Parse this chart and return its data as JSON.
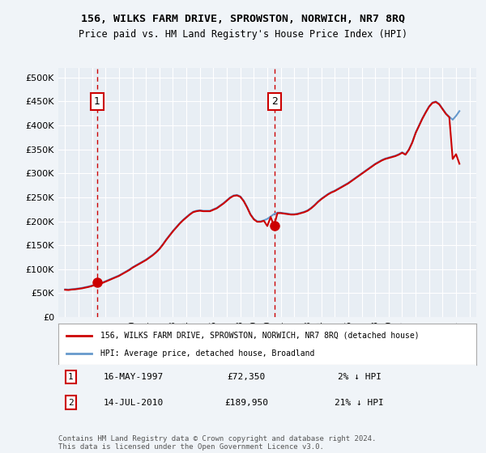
{
  "title": "156, WILKS FARM DRIVE, SPROWSTON, NORWICH, NR7 8RQ",
  "subtitle": "Price paid vs. HM Land Registry's House Price Index (HPI)",
  "legend_line1": "156, WILKS FARM DRIVE, SPROWSTON, NORWICH, NR7 8RQ (detached house)",
  "legend_line2": "HPI: Average price, detached house, Broadland",
  "annotation1_label": "1",
  "annotation1_date": "16-MAY-1997",
  "annotation1_price": "£72,350",
  "annotation1_hpi": "2% ↓ HPI",
  "annotation2_label": "2",
  "annotation2_date": "14-JUL-2010",
  "annotation2_price": "£189,950",
  "annotation2_hpi": "21% ↓ HPI",
  "footnote": "Contains HM Land Registry data © Crown copyright and database right 2024.\nThis data is licensed under the Open Government Licence v3.0.",
  "sale1_year": 1997.375,
  "sale1_price": 72350,
  "sale2_year": 2010.54,
  "sale2_price": 189950,
  "xlim": [
    1994.5,
    2025.5
  ],
  "ylim": [
    0,
    520000
  ],
  "yticks": [
    0,
    50000,
    100000,
    150000,
    200000,
    250000,
    300000,
    350000,
    400000,
    450000,
    500000
  ],
  "ytick_labels": [
    "£0",
    "£50K",
    "£100K",
    "£150K",
    "£200K",
    "£250K",
    "£300K",
    "£350K",
    "£400K",
    "£450K",
    "£500K"
  ],
  "background_color": "#f0f4f8",
  "plot_bg_color": "#e8eef4",
  "grid_color": "#ffffff",
  "red_line_color": "#cc0000",
  "blue_line_color": "#6699cc",
  "sale_dot_color": "#cc0000",
  "vline_color": "#cc0000",
  "hpi_line": {
    "years": [
      1995,
      1995.25,
      1995.5,
      1995.75,
      1996,
      1996.25,
      1996.5,
      1996.75,
      1997,
      1997.25,
      1997.5,
      1997.75,
      1998,
      1998.25,
      1998.5,
      1998.75,
      1999,
      1999.25,
      1999.5,
      1999.75,
      2000,
      2000.25,
      2000.5,
      2000.75,
      2001,
      2001.25,
      2001.5,
      2001.75,
      2002,
      2002.25,
      2002.5,
      2002.75,
      2003,
      2003.25,
      2003.5,
      2003.75,
      2004,
      2004.25,
      2004.5,
      2004.75,
      2005,
      2005.25,
      2005.5,
      2005.75,
      2006,
      2006.25,
      2006.5,
      2006.75,
      2007,
      2007.25,
      2007.5,
      2007.75,
      2008,
      2008.25,
      2008.5,
      2008.75,
      2009,
      2009.25,
      2009.5,
      2009.75,
      2010,
      2010.25,
      2010.5,
      2010.75,
      2011,
      2011.25,
      2011.5,
      2011.75,
      2012,
      2012.25,
      2012.5,
      2012.75,
      2013,
      2013.25,
      2013.5,
      2013.75,
      2014,
      2014.25,
      2014.5,
      2014.75,
      2015,
      2015.25,
      2015.5,
      2015.75,
      2016,
      2016.25,
      2016.5,
      2016.75,
      2017,
      2017.25,
      2017.5,
      2017.75,
      2018,
      2018.25,
      2018.5,
      2018.75,
      2019,
      2019.25,
      2019.5,
      2019.75,
      2020,
      2020.25,
      2020.5,
      2020.75,
      2021,
      2021.25,
      2021.5,
      2021.75,
      2022,
      2022.25,
      2022.5,
      2022.75,
      2023,
      2023.25,
      2023.5,
      2023.75,
      2024,
      2024.25
    ],
    "values": [
      58000,
      57500,
      58500,
      59000,
      60000,
      61000,
      62500,
      64000,
      66000,
      68000,
      70000,
      72000,
      75000,
      78000,
      81000,
      84000,
      87000,
      91000,
      95000,
      99000,
      104000,
      108000,
      112000,
      116000,
      120000,
      125000,
      130000,
      136000,
      143000,
      152000,
      162000,
      171000,
      180000,
      188000,
      196000,
      203000,
      209000,
      215000,
      220000,
      222000,
      223000,
      222000,
      222000,
      222000,
      225000,
      228000,
      233000,
      238000,
      244000,
      250000,
      254000,
      255000,
      252000,
      243000,
      230000,
      215000,
      205000,
      200000,
      200000,
      202000,
      205000,
      210000,
      215000,
      218000,
      218000,
      217000,
      216000,
      215000,
      215000,
      216000,
      218000,
      220000,
      223000,
      228000,
      234000,
      241000,
      247000,
      252000,
      257000,
      261000,
      264000,
      268000,
      272000,
      276000,
      280000,
      285000,
      290000,
      295000,
      300000,
      305000,
      310000,
      315000,
      320000,
      324000,
      328000,
      331000,
      333000,
      335000,
      337000,
      340000,
      344000,
      340000,
      350000,
      365000,
      385000,
      400000,
      415000,
      428000,
      440000,
      448000,
      450000,
      445000,
      435000,
      425000,
      418000,
      412000,
      420000,
      430000
    ]
  },
  "red_line": {
    "years": [
      1995,
      1995.25,
      1995.5,
      1995.75,
      1996,
      1996.25,
      1996.5,
      1996.75,
      1997,
      1997.25,
      1997.5,
      1997.75,
      1998,
      1998.25,
      1998.5,
      1998.75,
      1999,
      1999.25,
      1999.5,
      1999.75,
      2000,
      2000.25,
      2000.5,
      2000.75,
      2001,
      2001.25,
      2001.5,
      2001.75,
      2002,
      2002.25,
      2002.5,
      2002.75,
      2003,
      2003.25,
      2003.5,
      2003.75,
      2004,
      2004.25,
      2004.5,
      2004.75,
      2005,
      2005.25,
      2005.5,
      2005.75,
      2006,
      2006.25,
      2006.5,
      2006.75,
      2007,
      2007.25,
      2007.5,
      2007.75,
      2008,
      2008.25,
      2008.5,
      2008.75,
      2009,
      2009.25,
      2009.5,
      2009.75,
      2010,
      2010.25,
      2010.5,
      2010.75,
      2011,
      2011.25,
      2011.5,
      2011.75,
      2012,
      2012.25,
      2012.5,
      2012.75,
      2013,
      2013.25,
      2013.5,
      2013.75,
      2014,
      2014.25,
      2014.5,
      2014.75,
      2015,
      2015.25,
      2015.5,
      2015.75,
      2016,
      2016.25,
      2016.5,
      2016.75,
      2017,
      2017.25,
      2017.5,
      2017.75,
      2018,
      2018.25,
      2018.5,
      2018.75,
      2019,
      2019.25,
      2019.5,
      2019.75,
      2020,
      2020.25,
      2020.5,
      2020.75,
      2021,
      2021.25,
      2021.5,
      2021.75,
      2022,
      2022.25,
      2022.5,
      2022.75,
      2023,
      2023.25,
      2023.5,
      2023.75,
      2024,
      2024.25
    ],
    "values": [
      57000,
      56500,
      57500,
      58000,
      59000,
      60000,
      61500,
      63000,
      65000,
      67000,
      73000,
      71000,
      74000,
      77000,
      80000,
      83000,
      86000,
      90000,
      94000,
      98000,
      103000,
      107000,
      111000,
      115000,
      119000,
      124000,
      129000,
      135000,
      142000,
      151000,
      161000,
      170000,
      179000,
      187000,
      195000,
      202000,
      208000,
      214000,
      219000,
      221000,
      222000,
      221000,
      221000,
      221000,
      224000,
      227000,
      232000,
      237000,
      243000,
      249000,
      253000,
      254000,
      251000,
      242000,
      229000,
      214000,
      204000,
      199000,
      199000,
      201000,
      190000,
      209000,
      189950,
      217000,
      217000,
      216000,
      215000,
      214000,
      214000,
      215000,
      217000,
      219000,
      222000,
      227000,
      233000,
      240000,
      246000,
      251000,
      256000,
      260000,
      263000,
      267000,
      271000,
      275000,
      279000,
      284000,
      289000,
      294000,
      299000,
      304000,
      309000,
      314000,
      319000,
      323000,
      327000,
      330000,
      332000,
      334000,
      336000,
      339000,
      343000,
      339000,
      349000,
      364000,
      384000,
      399000,
      414000,
      427000,
      439000,
      447000,
      449000,
      444000,
      434000,
      424000,
      417000,
      330000,
      340000,
      320000
    ]
  }
}
